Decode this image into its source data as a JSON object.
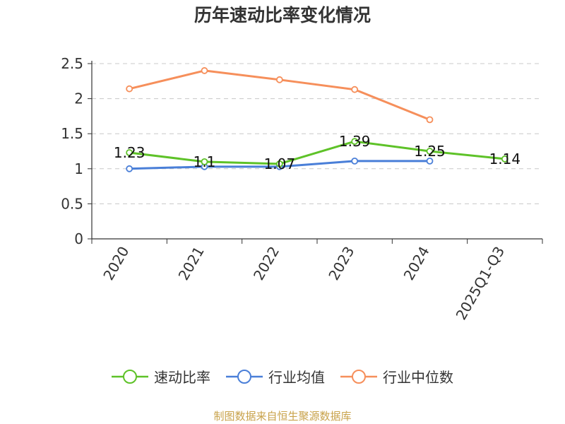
{
  "chart_data": {
    "type": "line",
    "title": "历年速动比率变化情况",
    "categories": [
      "2020",
      "2021",
      "2022",
      "2023",
      "2024",
      "2025Q1-Q3"
    ],
    "ylim": [
      0,
      2.5
    ],
    "yticks": [
      "0",
      "0.5",
      "1",
      "1.5",
      "2",
      "2.5"
    ],
    "grid": true,
    "legend_position": "bottom",
    "series": [
      {
        "name": "速动比率",
        "color": "#5ec228",
        "values": [
          1.23,
          1.1,
          1.07,
          1.39,
          1.25,
          1.14
        ],
        "labels": [
          "1.23",
          "1.1",
          "1.07",
          "1.39",
          "1.25",
          "1.14"
        ]
      },
      {
        "name": "行业均值",
        "color": "#4a7fd8",
        "values": [
          1.0,
          1.03,
          1.03,
          1.11,
          1.11,
          null
        ]
      },
      {
        "name": "行业中位数",
        "color": "#f68f5b",
        "values": [
          2.14,
          2.4,
          2.27,
          2.13,
          1.7,
          null
        ]
      }
    ]
  },
  "footer": {
    "source": "制图数据来自恒生聚源数据库"
  }
}
